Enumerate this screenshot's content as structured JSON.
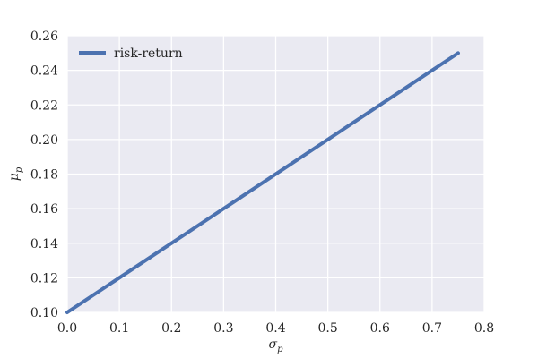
{
  "chart_data": {
    "type": "line",
    "title": "",
    "xlabel": "σ",
    "xlabel_sub": "p",
    "ylabel": "μ",
    "ylabel_sub": "p",
    "xlim": [
      0.0,
      0.8
    ],
    "ylim": [
      0.1,
      0.26
    ],
    "xticks": [
      "0.0",
      "0.1",
      "0.2",
      "0.3",
      "0.4",
      "0.5",
      "0.6",
      "0.7",
      "0.8"
    ],
    "yticks": [
      "0.10",
      "0.12",
      "0.14",
      "0.16",
      "0.18",
      "0.20",
      "0.22",
      "0.24",
      "0.26"
    ],
    "grid": true,
    "legend_position": "top-left",
    "colors": {
      "plot_bg": "#EAEAF2",
      "grid": "#FFFFFF",
      "line": "#4C72B0"
    },
    "series": [
      {
        "name": "risk-return",
        "x": [
          0.0,
          0.75
        ],
        "y": [
          0.1,
          0.25
        ]
      }
    ]
  }
}
